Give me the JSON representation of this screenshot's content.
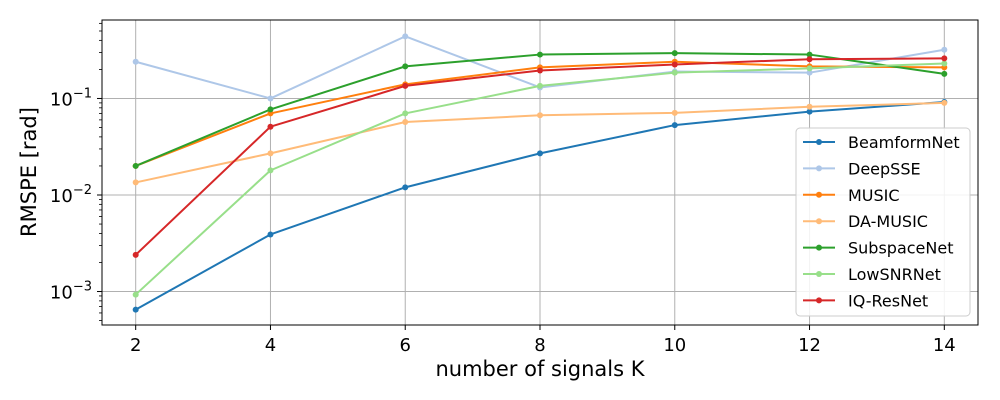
{
  "chart_data": {
    "type": "line",
    "title": "",
    "xlabel": "number of signals K",
    "ylabel": "RMSPE [rad]",
    "x": [
      2,
      4,
      6,
      8,
      10,
      12,
      14
    ],
    "xlim": [
      1.5,
      14.5
    ],
    "ylim": [
      0.00045,
      0.65
    ],
    "yscale": "log",
    "grid": true,
    "legend": "center-right",
    "x_ticks": [
      "2",
      "4",
      "6",
      "8",
      "10",
      "12",
      "14"
    ],
    "y_ticks": [
      {
        "value": 0.001,
        "mantissa": "10",
        "exp": "−3"
      },
      {
        "value": 0.01,
        "mantissa": "10",
        "exp": "−2"
      },
      {
        "value": 0.1,
        "mantissa": "10",
        "exp": "−1"
      }
    ],
    "series": [
      {
        "name": "BeamformNet",
        "color": "#1f77b4",
        "values": [
          0.00065,
          0.0039,
          0.012,
          0.027,
          0.053,
          0.073,
          0.092
        ]
      },
      {
        "name": "DeepSSE",
        "color": "#aec7e8",
        "values": [
          0.24,
          0.1,
          0.44,
          0.13,
          0.19,
          0.185,
          0.32
        ]
      },
      {
        "name": "MUSIC",
        "color": "#ff7f0e",
        "values": [
          0.02,
          0.07,
          0.14,
          0.21,
          0.24,
          0.215,
          0.21
        ]
      },
      {
        "name": "DA-MUSIC",
        "color": "#ffbb78",
        "values": [
          0.0135,
          0.027,
          0.057,
          0.067,
          0.071,
          0.082,
          0.09
        ]
      },
      {
        "name": "SubspaceNet",
        "color": "#2ca02c",
        "values": [
          0.02,
          0.077,
          0.215,
          0.285,
          0.295,
          0.285,
          0.18
        ]
      },
      {
        "name": "LowSNRNet",
        "color": "#98df8a",
        "values": [
          0.00093,
          0.018,
          0.07,
          0.135,
          0.185,
          0.205,
          0.23
        ]
      },
      {
        "name": "IQ-ResNet",
        "color": "#d62728",
        "values": [
          0.0024,
          0.051,
          0.135,
          0.195,
          0.225,
          0.255,
          0.26
        ]
      }
    ]
  }
}
